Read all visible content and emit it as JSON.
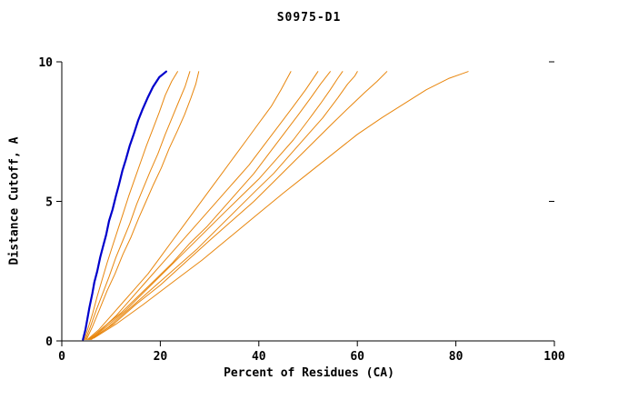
{
  "chart_data": {
    "type": "line",
    "title": "S0975-D1",
    "xlabel": "Percent of Residues (CA)",
    "ylabel": "Distance Cutoff, A",
    "xlim": [
      0,
      100
    ],
    "ylim": [
      0,
      10
    ],
    "xticks": [
      0,
      20,
      40,
      60,
      80,
      100
    ],
    "yticks": [
      0,
      5,
      10
    ],
    "grid": false,
    "legend": "none",
    "colors": {
      "highlight": "#0000cc",
      "models": "#e8860d",
      "axis": "#000000"
    },
    "series": [
      {
        "name": "highlighted-model",
        "color": "#0000cc",
        "width": 2.2,
        "points": [
          [
            4.3,
            0.05
          ],
          [
            4.8,
            0.4
          ],
          [
            5.2,
            0.8
          ],
          [
            5.6,
            1.2
          ],
          [
            6.2,
            1.7
          ],
          [
            6.6,
            2.1
          ],
          [
            7.2,
            2.5
          ],
          [
            7.8,
            3.0
          ],
          [
            8.4,
            3.4
          ],
          [
            9.0,
            3.8
          ],
          [
            9.6,
            4.3
          ],
          [
            10.3,
            4.7
          ],
          [
            11.0,
            5.2
          ],
          [
            11.6,
            5.6
          ],
          [
            12.3,
            6.1
          ],
          [
            13.0,
            6.5
          ],
          [
            13.8,
            7.0
          ],
          [
            14.6,
            7.4
          ],
          [
            15.5,
            7.9
          ],
          [
            16.4,
            8.3
          ],
          [
            17.4,
            8.7
          ],
          [
            18.5,
            9.1
          ],
          [
            19.8,
            9.45
          ],
          [
            21.2,
            9.65
          ]
        ]
      },
      {
        "name": "model-01",
        "color": "#e8860d",
        "width": 1,
        "points": [
          [
            4.6,
            0.05
          ],
          [
            5.4,
            0.5
          ],
          [
            6.3,
            1.0
          ],
          [
            7.2,
            1.6
          ],
          [
            8.2,
            2.2
          ],
          [
            9.2,
            2.8
          ],
          [
            10.3,
            3.4
          ],
          [
            11.4,
            4.0
          ],
          [
            12.5,
            4.6
          ],
          [
            13.6,
            5.2
          ],
          [
            14.8,
            5.8
          ],
          [
            16.0,
            6.4
          ],
          [
            17.2,
            7.0
          ],
          [
            18.5,
            7.6
          ],
          [
            19.8,
            8.2
          ],
          [
            21.0,
            8.8
          ],
          [
            22.3,
            9.3
          ],
          [
            23.5,
            9.65
          ]
        ]
      },
      {
        "name": "model-02",
        "color": "#e8860d",
        "width": 1,
        "points": [
          [
            4.8,
            0.05
          ],
          [
            5.8,
            0.5
          ],
          [
            7.0,
            1.1
          ],
          [
            8.3,
            1.7
          ],
          [
            9.6,
            2.3
          ],
          [
            11.0,
            3.0
          ],
          [
            12.4,
            3.6
          ],
          [
            13.8,
            4.2
          ],
          [
            15.2,
            4.9
          ],
          [
            16.6,
            5.5
          ],
          [
            18.0,
            6.1
          ],
          [
            19.5,
            6.7
          ],
          [
            21.0,
            7.4
          ],
          [
            22.4,
            8.0
          ],
          [
            23.8,
            8.6
          ],
          [
            25.0,
            9.1
          ],
          [
            26.0,
            9.65
          ]
        ]
      },
      {
        "name": "model-03",
        "color": "#e8860d",
        "width": 1,
        "points": [
          [
            5.0,
            0.05
          ],
          [
            6.2,
            0.5
          ],
          [
            7.6,
            1.1
          ],
          [
            9.2,
            1.8
          ],
          [
            10.8,
            2.4
          ],
          [
            12.4,
            3.1
          ],
          [
            14.0,
            3.7
          ],
          [
            15.6,
            4.4
          ],
          [
            17.1,
            5.0
          ],
          [
            18.6,
            5.6
          ],
          [
            20.2,
            6.2
          ],
          [
            21.8,
            6.9
          ],
          [
            23.4,
            7.5
          ],
          [
            24.9,
            8.1
          ],
          [
            26.2,
            8.7
          ],
          [
            27.2,
            9.2
          ],
          [
            27.8,
            9.65
          ]
        ]
      },
      {
        "name": "model-04",
        "color": "#e8860d",
        "width": 1,
        "points": [
          [
            5.2,
            0.05
          ],
          [
            7.5,
            0.4
          ],
          [
            10.0,
            0.9
          ],
          [
            12.5,
            1.4
          ],
          [
            15.0,
            1.9
          ],
          [
            17.5,
            2.4
          ],
          [
            20.0,
            3.0
          ],
          [
            22.5,
            3.6
          ],
          [
            25.0,
            4.2
          ],
          [
            27.5,
            4.8
          ],
          [
            30.0,
            5.4
          ],
          [
            32.5,
            6.0
          ],
          [
            35.0,
            6.6
          ],
          [
            37.5,
            7.2
          ],
          [
            40.0,
            7.8
          ],
          [
            42.5,
            8.4
          ],
          [
            44.5,
            9.0
          ],
          [
            46.5,
            9.65
          ]
        ]
      },
      {
        "name": "model-05",
        "color": "#e8860d",
        "width": 1,
        "points": [
          [
            5.4,
            0.05
          ],
          [
            8.0,
            0.4
          ],
          [
            11.0,
            0.9
          ],
          [
            14.0,
            1.5
          ],
          [
            17.0,
            2.1
          ],
          [
            20.0,
            2.7
          ],
          [
            23.0,
            3.3
          ],
          [
            26.0,
            3.9
          ],
          [
            29.0,
            4.5
          ],
          [
            32.0,
            5.1
          ],
          [
            35.0,
            5.7
          ],
          [
            38.0,
            6.3
          ],
          [
            41.0,
            7.0
          ],
          [
            44.0,
            7.7
          ],
          [
            47.0,
            8.4
          ],
          [
            49.5,
            9.0
          ],
          [
            52.0,
            9.65
          ]
        ]
      },
      {
        "name": "model-06",
        "color": "#e8860d",
        "width": 1,
        "points": [
          [
            5.6,
            0.05
          ],
          [
            8.5,
            0.5
          ],
          [
            12.0,
            1.0
          ],
          [
            15.5,
            1.6
          ],
          [
            19.0,
            2.2
          ],
          [
            22.5,
            2.8
          ],
          [
            26.0,
            3.5
          ],
          [
            29.5,
            4.1
          ],
          [
            33.0,
            4.8
          ],
          [
            36.0,
            5.4
          ],
          [
            39.0,
            6.0
          ],
          [
            42.0,
            6.7
          ],
          [
            45.0,
            7.4
          ],
          [
            48.0,
            8.1
          ],
          [
            50.5,
            8.7
          ],
          [
            52.5,
            9.2
          ],
          [
            54.5,
            9.65
          ]
        ]
      },
      {
        "name": "model-07",
        "color": "#e8860d",
        "width": 1,
        "points": [
          [
            5.8,
            0.05
          ],
          [
            9.0,
            0.5
          ],
          [
            13.0,
            1.1
          ],
          [
            17.0,
            1.8
          ],
          [
            21.0,
            2.5
          ],
          [
            25.0,
            3.2
          ],
          [
            29.0,
            3.9
          ],
          [
            33.0,
            4.6
          ],
          [
            36.5,
            5.2
          ],
          [
            40.0,
            5.8
          ],
          [
            43.5,
            6.5
          ],
          [
            47.0,
            7.2
          ],
          [
            50.0,
            7.9
          ],
          [
            52.5,
            8.5
          ],
          [
            54.5,
            9.0
          ],
          [
            56.0,
            9.4
          ],
          [
            57.0,
            9.65
          ]
        ]
      },
      {
        "name": "model-08",
        "color": "#e8860d",
        "width": 1,
        "points": [
          [
            6.0,
            0.05
          ],
          [
            9.5,
            0.5
          ],
          [
            14.0,
            1.2
          ],
          [
            18.5,
            1.9
          ],
          [
            23.0,
            2.6
          ],
          [
            27.5,
            3.3
          ],
          [
            31.5,
            4.0
          ],
          [
            35.5,
            4.7
          ],
          [
            39.5,
            5.4
          ],
          [
            43.0,
            6.0
          ],
          [
            46.5,
            6.7
          ],
          [
            50.0,
            7.4
          ],
          [
            53.0,
            8.0
          ],
          [
            56.0,
            8.7
          ],
          [
            58.0,
            9.2
          ],
          [
            59.5,
            9.5
          ],
          [
            60.0,
            9.65
          ]
        ]
      },
      {
        "name": "model-09",
        "color": "#e8860d",
        "width": 1,
        "points": [
          [
            6.2,
            0.1
          ],
          [
            10.5,
            0.6
          ],
          [
            15.0,
            1.3
          ],
          [
            20.0,
            2.0
          ],
          [
            25.0,
            2.8
          ],
          [
            30.0,
            3.6
          ],
          [
            34.5,
            4.3
          ],
          [
            39.0,
            5.0
          ],
          [
            43.0,
            5.7
          ],
          [
            47.0,
            6.4
          ],
          [
            51.0,
            7.1
          ],
          [
            55.0,
            7.8
          ],
          [
            58.5,
            8.4
          ],
          [
            61.5,
            8.9
          ],
          [
            64.0,
            9.3
          ],
          [
            66.0,
            9.65
          ]
        ]
      },
      {
        "name": "model-10",
        "color": "#e8860d",
        "width": 1,
        "points": [
          [
            6.5,
            0.1
          ],
          [
            11.0,
            0.6
          ],
          [
            16.5,
            1.3
          ],
          [
            22.5,
            2.1
          ],
          [
            28.5,
            2.9
          ],
          [
            34.0,
            3.7
          ],
          [
            39.5,
            4.5
          ],
          [
            45.0,
            5.3
          ],
          [
            50.0,
            6.0
          ],
          [
            55.0,
            6.7
          ],
          [
            60.0,
            7.4
          ],
          [
            65.0,
            8.0
          ],
          [
            69.5,
            8.5
          ],
          [
            74.0,
            9.0
          ],
          [
            78.5,
            9.4
          ],
          [
            82.5,
            9.65
          ]
        ]
      }
    ]
  }
}
